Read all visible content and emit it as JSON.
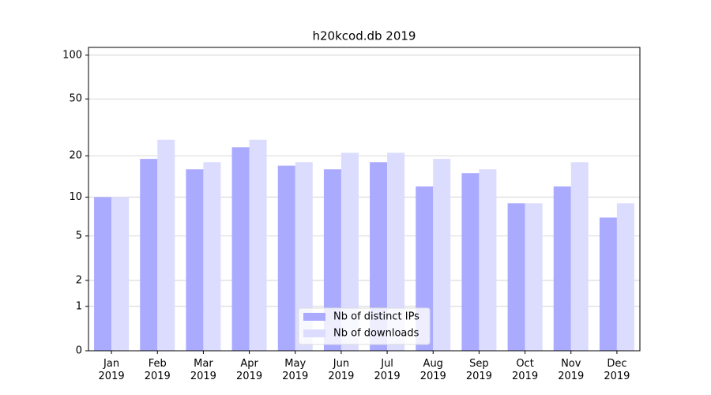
{
  "chart_data": {
    "type": "bar",
    "title": "h20kcod.db 2019",
    "categories": [
      "Jan\n2019",
      "Feb\n2019",
      "Mar\n2019",
      "Apr\n2019",
      "May\n2019",
      "Jun\n2019",
      "Jul\n2019",
      "Aug\n2019",
      "Sep\n2019",
      "Oct\n2019",
      "Nov\n2019",
      "Dec\n2019"
    ],
    "series": [
      {
        "name": "Nb of distinct IPs",
        "color": "#aaaaff",
        "values": [
          10,
          19,
          16,
          23,
          17,
          16,
          18,
          12,
          15,
          9,
          12,
          7
        ]
      },
      {
        "name": "Nb of downloads",
        "color": "#dcdcfe",
        "values": [
          10,
          26,
          18,
          26,
          18,
          21,
          21,
          19,
          16,
          9,
          18,
          9
        ]
      }
    ],
    "yscale": "log1p",
    "ylim": [
      0,
      113
    ],
    "yticks": [
      0,
      1,
      2,
      5,
      10,
      20,
      50,
      100
    ],
    "grid": true,
    "legend": "lower center"
  }
}
